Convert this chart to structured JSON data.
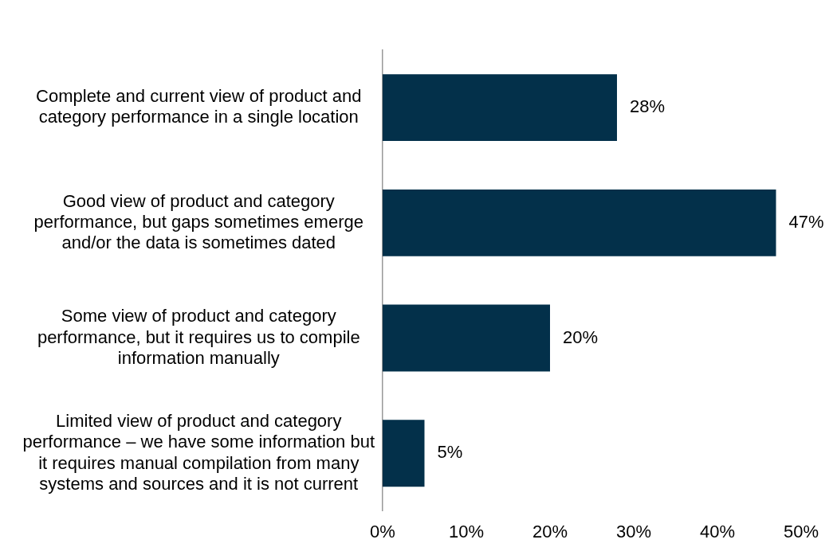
{
  "chart_data": {
    "type": "bar",
    "orientation": "horizontal",
    "categories": [
      "Complete and current view of product and category performance in a single location",
      "Good view of product and category performance, but gaps sometimes emerge and/or the data is sometimes dated",
      "Some view of product and category performance, but it requires us to compile information manually",
      "Limited view of product and category performance – we have some information but it requires manual compilation from many systems and sources and it is not current"
    ],
    "values": [
      28,
      47,
      20,
      5
    ],
    "value_labels": [
      "28%",
      "47%",
      "20%",
      "5%"
    ],
    "color": "#03304a",
    "xlim": [
      0,
      50
    ],
    "xticks": [
      {
        "value": 0,
        "label": "0%"
      },
      {
        "value": 10,
        "label": "10%"
      },
      {
        "value": 20,
        "label": "20%"
      },
      {
        "value": 30,
        "label": "30%"
      },
      {
        "value": 40,
        "label": "40%"
      },
      {
        "value": 50,
        "label": "50%"
      }
    ],
    "grid": false,
    "legend": false
  }
}
